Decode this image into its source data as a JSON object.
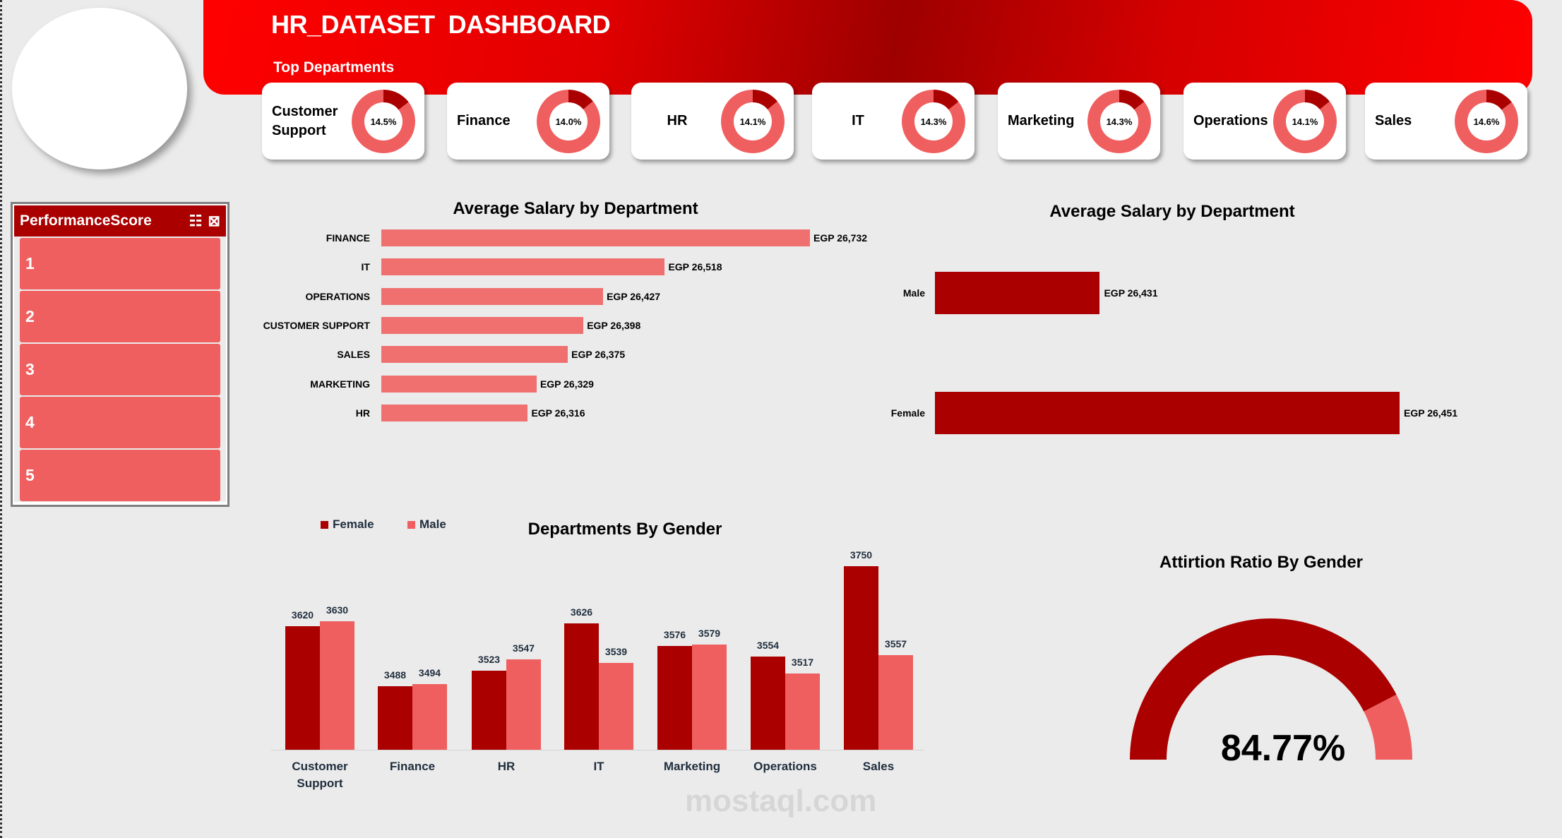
{
  "header": {
    "title": "HR_DATASET  DASHBOARD",
    "subtitle": "Top Departments"
  },
  "colors": {
    "dark_red": "#aa0000",
    "light_red": "#f05f5f",
    "bar_salmon": "#f07070",
    "background": "#ebebeb"
  },
  "top_departments": [
    {
      "name": "Customer Support",
      "lines": [
        "Customer",
        "Support"
      ],
      "share_label": "14.5%",
      "share": 14.5
    },
    {
      "name": "Finance",
      "lines": [
        "Finance"
      ],
      "share_label": "14.0%",
      "share": 14.0
    },
    {
      "name": "HR",
      "lines": [
        "HR"
      ],
      "share_label": "14.1%",
      "share": 14.1
    },
    {
      "name": "IT",
      "lines": [
        "IT"
      ],
      "share_label": "14.3%",
      "share": 14.3
    },
    {
      "name": "Marketing",
      "lines": [
        "Marketing"
      ],
      "share_label": "14.3%",
      "share": 14.3
    },
    {
      "name": "Operations",
      "lines": [
        "Operations"
      ],
      "share_label": "14.1%",
      "share": 14.1
    },
    {
      "name": "Sales",
      "lines": [
        "Sales"
      ],
      "share_label": "14.6%",
      "share": 14.6
    }
  ],
  "slicer": {
    "title": "PerformanceScore",
    "icons": [
      "multi-select-icon",
      "clear-filter-icon"
    ],
    "items": [
      "1",
      "2",
      "3",
      "4",
      "5"
    ]
  },
  "watermark": "mostaql.com",
  "chart_data": [
    {
      "type": "bar",
      "orientation": "horizontal",
      "title": "Average Salary by Department",
      "categories": [
        "FINANCE",
        "IT",
        "OPERATIONS",
        "CUSTOMER SUPPORT",
        "SALES",
        "MARKETING",
        "HR"
      ],
      "values": [
        26732,
        26518,
        26427,
        26398,
        26375,
        26329,
        26316
      ],
      "data_labels": [
        "EGP 26,732",
        "EGP 26,518",
        "EGP 26,427",
        "EGP 26,398",
        "EGP 26,375",
        "EGP 26,329",
        "EGP 26,316"
      ],
      "xlim": [
        26100,
        26750
      ],
      "grid": false,
      "color": "#f07070"
    },
    {
      "type": "bar",
      "orientation": "horizontal",
      "title": "Average Salary by Department",
      "categories": [
        "Male",
        "Female"
      ],
      "values": [
        26431,
        26451
      ],
      "data_labels": [
        "EGP 26,431",
        "EGP 26,451"
      ],
      "xlim": [
        26420,
        26455
      ],
      "grid": false,
      "color": "#aa0000"
    },
    {
      "type": "bar",
      "orientation": "vertical",
      "title": "Departments By Gender",
      "categories": [
        "Customer Support",
        "Finance",
        "HR",
        "IT",
        "Marketing",
        "Operations",
        "Sales"
      ],
      "category_lines": [
        [
          "Customer",
          "Support"
        ],
        [
          "Finance"
        ],
        [
          "HR"
        ],
        [
          "IT"
        ],
        [
          "Marketing"
        ],
        [
          "Operations"
        ],
        [
          "Sales"
        ]
      ],
      "series": [
        {
          "name": "Female",
          "color": "#aa0000",
          "values": [
            3620,
            3488,
            3523,
            3626,
            3576,
            3554,
            3750
          ]
        },
        {
          "name": "Male",
          "color": "#f05f5f",
          "values": [
            3630,
            3494,
            3547,
            3539,
            3579,
            3517,
            3557
          ]
        }
      ],
      "ylim": [
        3350,
        3800
      ],
      "grid": false,
      "legend": "top-left"
    },
    {
      "type": "pie",
      "subtype": "half-doughnut gauge",
      "title": "Attirtion Ratio By Gender",
      "value_label": "84.77%",
      "values": [
        84.77,
        15.23
      ],
      "colors": [
        "#aa0000",
        "#f05f5f"
      ]
    }
  ]
}
